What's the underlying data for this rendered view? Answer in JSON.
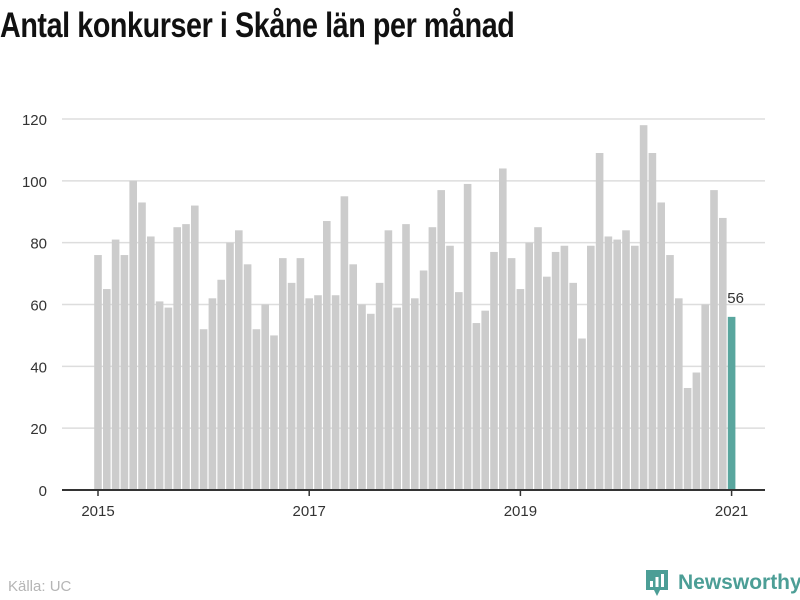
{
  "header": {
    "title": "Antal konkurser i Skåne län per månad"
  },
  "footer": {
    "source": "Källa: UC",
    "brand": "Newsworthy"
  },
  "colors": {
    "bar": "#cccccc",
    "highlight": "#59a69e",
    "grid": "#dddddd",
    "axis": "#333333"
  },
  "chart_data": {
    "type": "bar",
    "title": "Antal konkurser i Skåne län per månad",
    "xlabel": "",
    "ylabel": "",
    "ylim": [
      0,
      120
    ],
    "yticks": [
      0,
      20,
      40,
      60,
      80,
      100,
      120
    ],
    "x_start": "2015-01",
    "xticks": [
      "2015",
      "2017",
      "2019",
      "2021"
    ],
    "grid": true,
    "highlight_last": true,
    "annotation": {
      "text": "56"
    },
    "values": [
      76,
      65,
      81,
      76,
      100,
      93,
      82,
      61,
      59,
      85,
      86,
      92,
      52,
      62,
      68,
      80,
      84,
      73,
      52,
      60,
      50,
      75,
      67,
      75,
      62,
      63,
      87,
      63,
      95,
      73,
      60,
      57,
      67,
      84,
      59,
      86,
      62,
      71,
      85,
      97,
      79,
      64,
      99,
      54,
      58,
      77,
      104,
      75,
      65,
      80,
      85,
      69,
      77,
      79,
      67,
      49,
      79,
      109,
      82,
      81,
      84,
      79,
      118,
      109,
      93,
      76,
      62,
      33,
      38,
      60,
      97,
      88,
      56
    ]
  }
}
